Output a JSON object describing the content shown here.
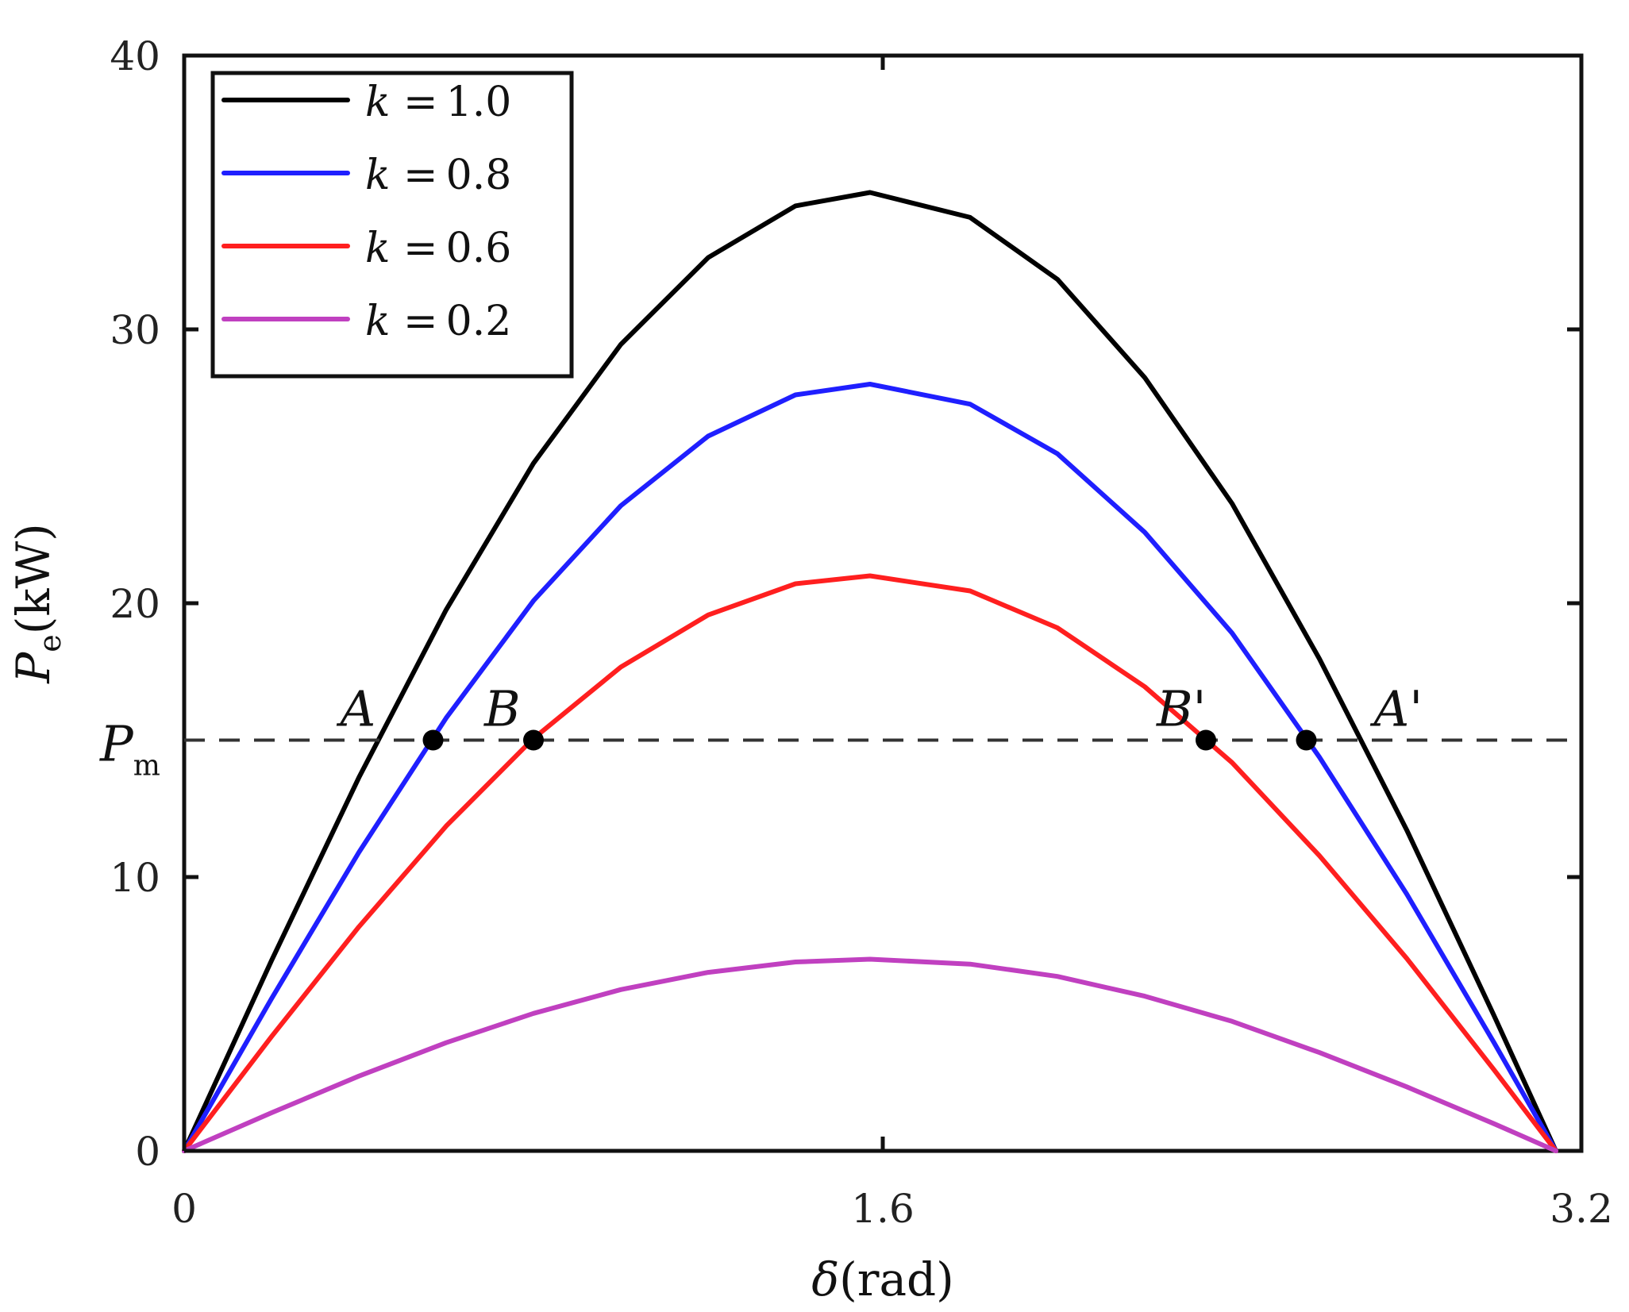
{
  "chart_data": {
    "type": "line",
    "xlabel": "δ(rad)",
    "ylabel": "Pe(kW)",
    "xlim": [
      0,
      3.2
    ],
    "ylim": [
      0,
      40
    ],
    "x_ticks": [
      "0",
      "1.6",
      "3.2"
    ],
    "y_ticks": [
      "0",
      "10",
      "20",
      "30",
      "40"
    ],
    "series": [
      {
        "name": "k = 1.0",
        "k": "1.0",
        "color": "#000000",
        "x": [
          0.0,
          0.2,
          0.4,
          0.6,
          0.8,
          1.0,
          1.2,
          1.4,
          1.5708,
          1.8,
          2.0,
          2.2,
          2.4,
          2.6,
          2.8,
          3.0,
          3.1416
        ],
        "y": [
          0.0,
          6.95,
          13.63,
          19.76,
          25.11,
          29.45,
          32.62,
          34.51,
          35.0,
          34.09,
          31.83,
          28.24,
          23.64,
          17.97,
          11.72,
          4.94,
          0.0
        ]
      },
      {
        "name": "k = 0.8",
        "k": "0.8",
        "color": "#1f1fff",
        "x": [
          0.0,
          0.2,
          0.4,
          0.6,
          0.8,
          1.0,
          1.2,
          1.4,
          1.5708,
          1.8,
          2.0,
          2.2,
          2.4,
          2.6,
          2.8,
          3.0,
          3.1416
        ],
        "y": [
          0.0,
          5.56,
          10.9,
          15.81,
          20.09,
          23.56,
          26.1,
          27.61,
          28.0,
          27.27,
          25.46,
          22.59,
          18.91,
          14.38,
          9.38,
          3.95,
          0.0
        ]
      },
      {
        "name": "k = 0.6",
        "k": "0.6",
        "color": "#ff1f1f",
        "x": [
          0.0,
          0.2,
          0.4,
          0.6,
          0.8,
          1.0,
          1.2,
          1.4,
          1.5708,
          1.8,
          2.0,
          2.2,
          2.4,
          2.6,
          2.8,
          3.0,
          3.1416
        ],
        "y": [
          0.0,
          4.17,
          8.18,
          11.86,
          15.06,
          17.67,
          19.57,
          20.71,
          21.0,
          20.45,
          19.1,
          16.95,
          14.18,
          10.78,
          7.03,
          2.96,
          0.0
        ]
      },
      {
        "name": "k = 0.2",
        "k": "0.2",
        "color": "#c040c0",
        "x": [
          0.0,
          0.2,
          0.4,
          0.6,
          0.8,
          1.0,
          1.2,
          1.4,
          1.5708,
          1.8,
          2.0,
          2.2,
          2.4,
          2.6,
          2.8,
          3.0,
          3.1416
        ],
        "y": [
          0.0,
          1.39,
          2.73,
          3.95,
          5.02,
          5.89,
          6.52,
          6.9,
          7.0,
          6.82,
          6.37,
          5.65,
          4.73,
          3.59,
          2.34,
          0.99,
          0.0
        ]
      }
    ],
    "reference_line": {
      "label": "Pm",
      "y": 15.0,
      "style": "dashed",
      "color": "#333333"
    },
    "marked_points": [
      {
        "label": "B",
        "x": 0.8,
        "y": 15.0
      },
      {
        "label": "",
        "x": 0.57,
        "y": 15.0
      },
      {
        "label": "B'",
        "x": 2.34,
        "y": 15.0
      },
      {
        "label": "",
        "x": 2.57,
        "y": 15.0
      }
    ],
    "annotations": [
      {
        "label": "A",
        "x": 0.43,
        "y": 15.0
      },
      {
        "label": "A'",
        "x": 2.71,
        "y": 15.0
      }
    ],
    "legend_location": "top-left",
    "grid": false
  }
}
